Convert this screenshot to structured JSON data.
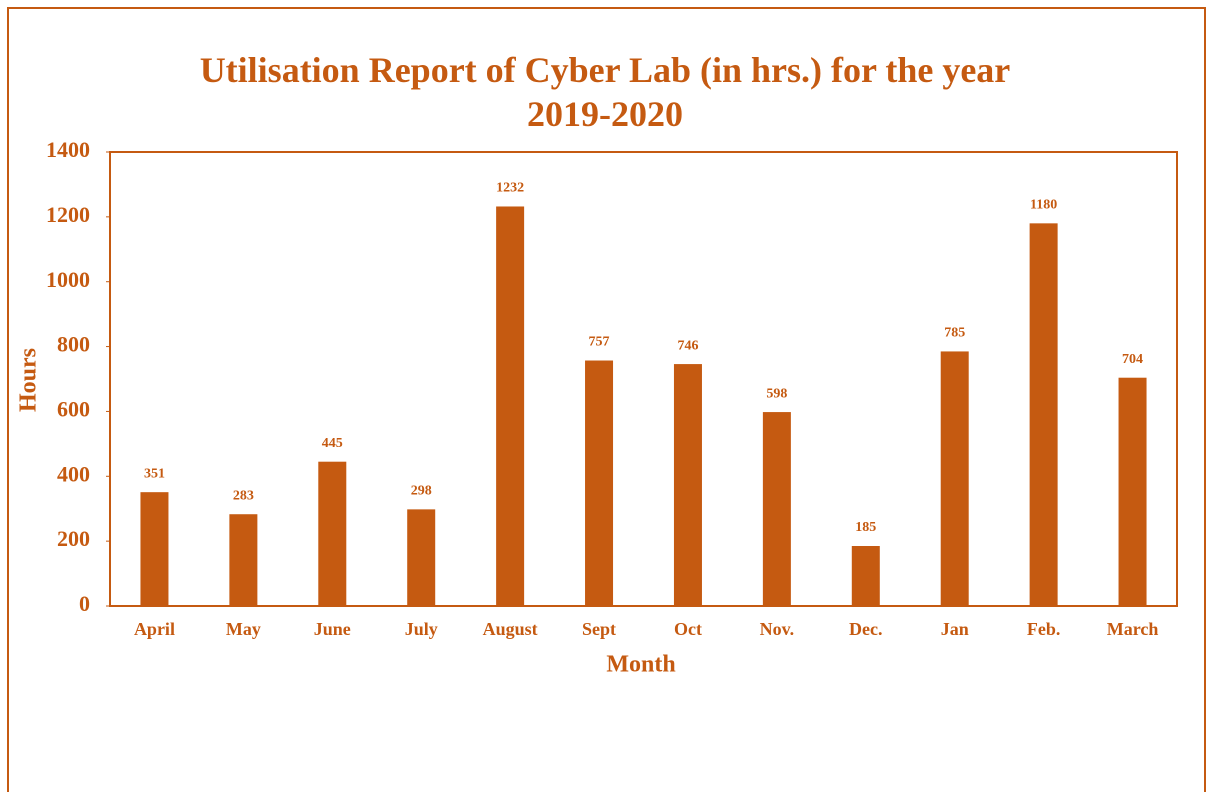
{
  "chart_data": {
    "type": "bar",
    "title": "Utilisation Report of Cyber Lab (in hrs.) for the year 2019-2020",
    "x_label": "Month",
    "y_label": "Hours",
    "categories": [
      "April",
      "May",
      "June",
      "July",
      "August",
      "Sept",
      "Oct",
      "Nov.",
      "Dec.",
      "Jan",
      "Feb.",
      "March"
    ],
    "values": [
      351,
      283,
      445,
      298,
      1232,
      757,
      746,
      598,
      185,
      785,
      1180,
      704
    ],
    "color": "#c55a11",
    "ylim": [
      0,
      1400
    ],
    "yticks": [
      0,
      200,
      400,
      600,
      800,
      1000,
      1200,
      1400
    ],
    "grid": false
  }
}
